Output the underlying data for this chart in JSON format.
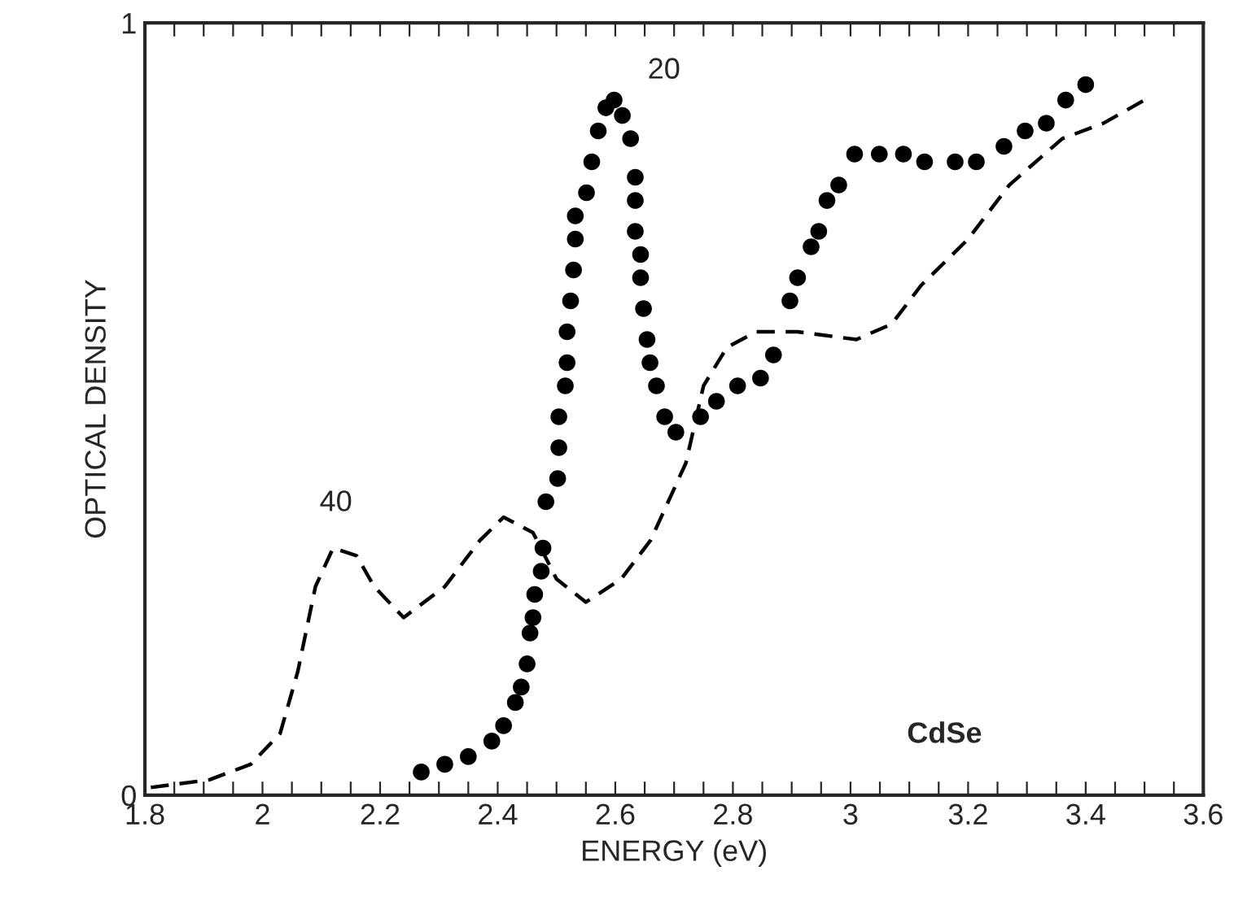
{
  "chart_data": {
    "type": "line",
    "xlabel": "ENERGY (eV)",
    "ylabel": "OPTICAL DENSITY",
    "xlim": [
      1.8,
      3.6
    ],
    "ylim": [
      0,
      1
    ],
    "xticks": [
      1.8,
      {
        "value": 1.85,
        "label": null
      },
      {
        "value": 1.9,
        "label": null
      },
      {
        "value": 1.95,
        "label": null
      },
      2,
      {
        "value": 2.05,
        "label": null
      },
      {
        "value": 2.1,
        "label": null
      },
      {
        "value": 2.15,
        "label": null
      },
      2.2,
      {
        "value": 2.25,
        "label": null
      },
      {
        "value": 2.3,
        "label": null
      },
      {
        "value": 2.35,
        "label": null
      },
      2.4,
      {
        "value": 2.45,
        "label": null
      },
      {
        "value": 2.5,
        "label": null
      },
      {
        "value": 2.55,
        "label": null
      },
      2.6,
      {
        "value": 2.65,
        "label": null
      },
      {
        "value": 2.7,
        "label": null
      },
      {
        "value": 2.75,
        "label": null
      },
      2.8,
      {
        "value": 2.85,
        "label": null
      },
      {
        "value": 2.9,
        "label": null
      },
      {
        "value": 2.95,
        "label": null
      },
      3,
      {
        "value": 3.05,
        "label": null
      },
      {
        "value": 3.1,
        "label": null
      },
      {
        "value": 3.15,
        "label": null
      },
      3.2,
      {
        "value": 3.25,
        "label": null
      },
      {
        "value": 3.3,
        "label": null
      },
      {
        "value": 3.35,
        "label": null
      },
      3.4,
      {
        "value": 3.45,
        "label": null
      },
      {
        "value": 3.5,
        "label": null
      },
      {
        "value": 3.55,
        "label": null
      },
      3.6
    ],
    "yticks": [
      0,
      1
    ],
    "grid": false,
    "legend": false,
    "series": [
      {
        "type": "scatter",
        "marker": "circle",
        "color": "#000000",
        "x": [
          2.27,
          2.31,
          2.35,
          2.39,
          2.41,
          2.43,
          2.44,
          2.45,
          2.455,
          2.46,
          2.463,
          2.474,
          2.477,
          2.482,
          2.502,
          2.504,
          2.504,
          2.515,
          2.518,
          2.518,
          2.524,
          2.529,
          2.532,
          2.532,
          2.551,
          2.56,
          2.571,
          2.584,
          2.598,
          2.612,
          2.626,
          2.634,
          2.634,
          2.634,
          2.643,
          2.643,
          2.648,
          2.654,
          2.659,
          2.67,
          2.684,
          2.703,
          2.745,
          2.772,
          2.808,
          2.847,
          2.869,
          2.897,
          2.91,
          2.933,
          2.946,
          2.96,
          2.98,
          3.007,
          3.049,
          3.09,
          3.126,
          3.178,
          3.214,
          3.261,
          3.297,
          3.333,
          3.366,
          3.4
        ],
        "values": [
          0.03,
          0.04,
          0.05,
          0.07,
          0.09,
          0.12,
          0.14,
          0.17,
          0.21,
          0.23,
          0.26,
          0.29,
          0.32,
          0.38,
          0.41,
          0.45,
          0.49,
          0.53,
          0.56,
          0.6,
          0.64,
          0.68,
          0.72,
          0.75,
          0.78,
          0.82,
          0.86,
          0.89,
          0.9,
          0.88,
          0.85,
          0.8,
          0.77,
          0.73,
          0.7,
          0.67,
          0.63,
          0.59,
          0.56,
          0.53,
          0.49,
          0.47,
          0.49,
          0.51,
          0.53,
          0.54,
          0.57,
          0.64,
          0.67,
          0.71,
          0.73,
          0.77,
          0.79,
          0.83,
          0.83,
          0.83,
          0.82,
          0.82,
          0.82,
          0.84,
          0.86,
          0.87,
          0.9,
          0.92
        ]
      },
      {
        "line_style": "dashed",
        "color": "#000000",
        "x": [
          1.81,
          1.91,
          1.98,
          2.03,
          2.06,
          2.09,
          2.12,
          2.16,
          2.19,
          2.24,
          2.31,
          2.37,
          2.41,
          2.46,
          2.5,
          2.55,
          2.61,
          2.66,
          2.72,
          2.75,
          2.79,
          2.84,
          2.91,
          3.01,
          3.07,
          3.12,
          3.2,
          3.27,
          3.36,
          3.43,
          3.5
        ],
        "values": [
          0.01,
          0.02,
          0.04,
          0.08,
          0.16,
          0.27,
          0.32,
          0.31,
          0.27,
          0.23,
          0.27,
          0.33,
          0.36,
          0.34,
          0.28,
          0.25,
          0.28,
          0.33,
          0.43,
          0.53,
          0.58,
          0.6,
          0.6,
          0.59,
          0.61,
          0.66,
          0.72,
          0.79,
          0.85,
          0.87,
          0.9
        ]
      }
    ],
    "annotations": [
      "20",
      "40",
      "CdSe"
    ]
  }
}
